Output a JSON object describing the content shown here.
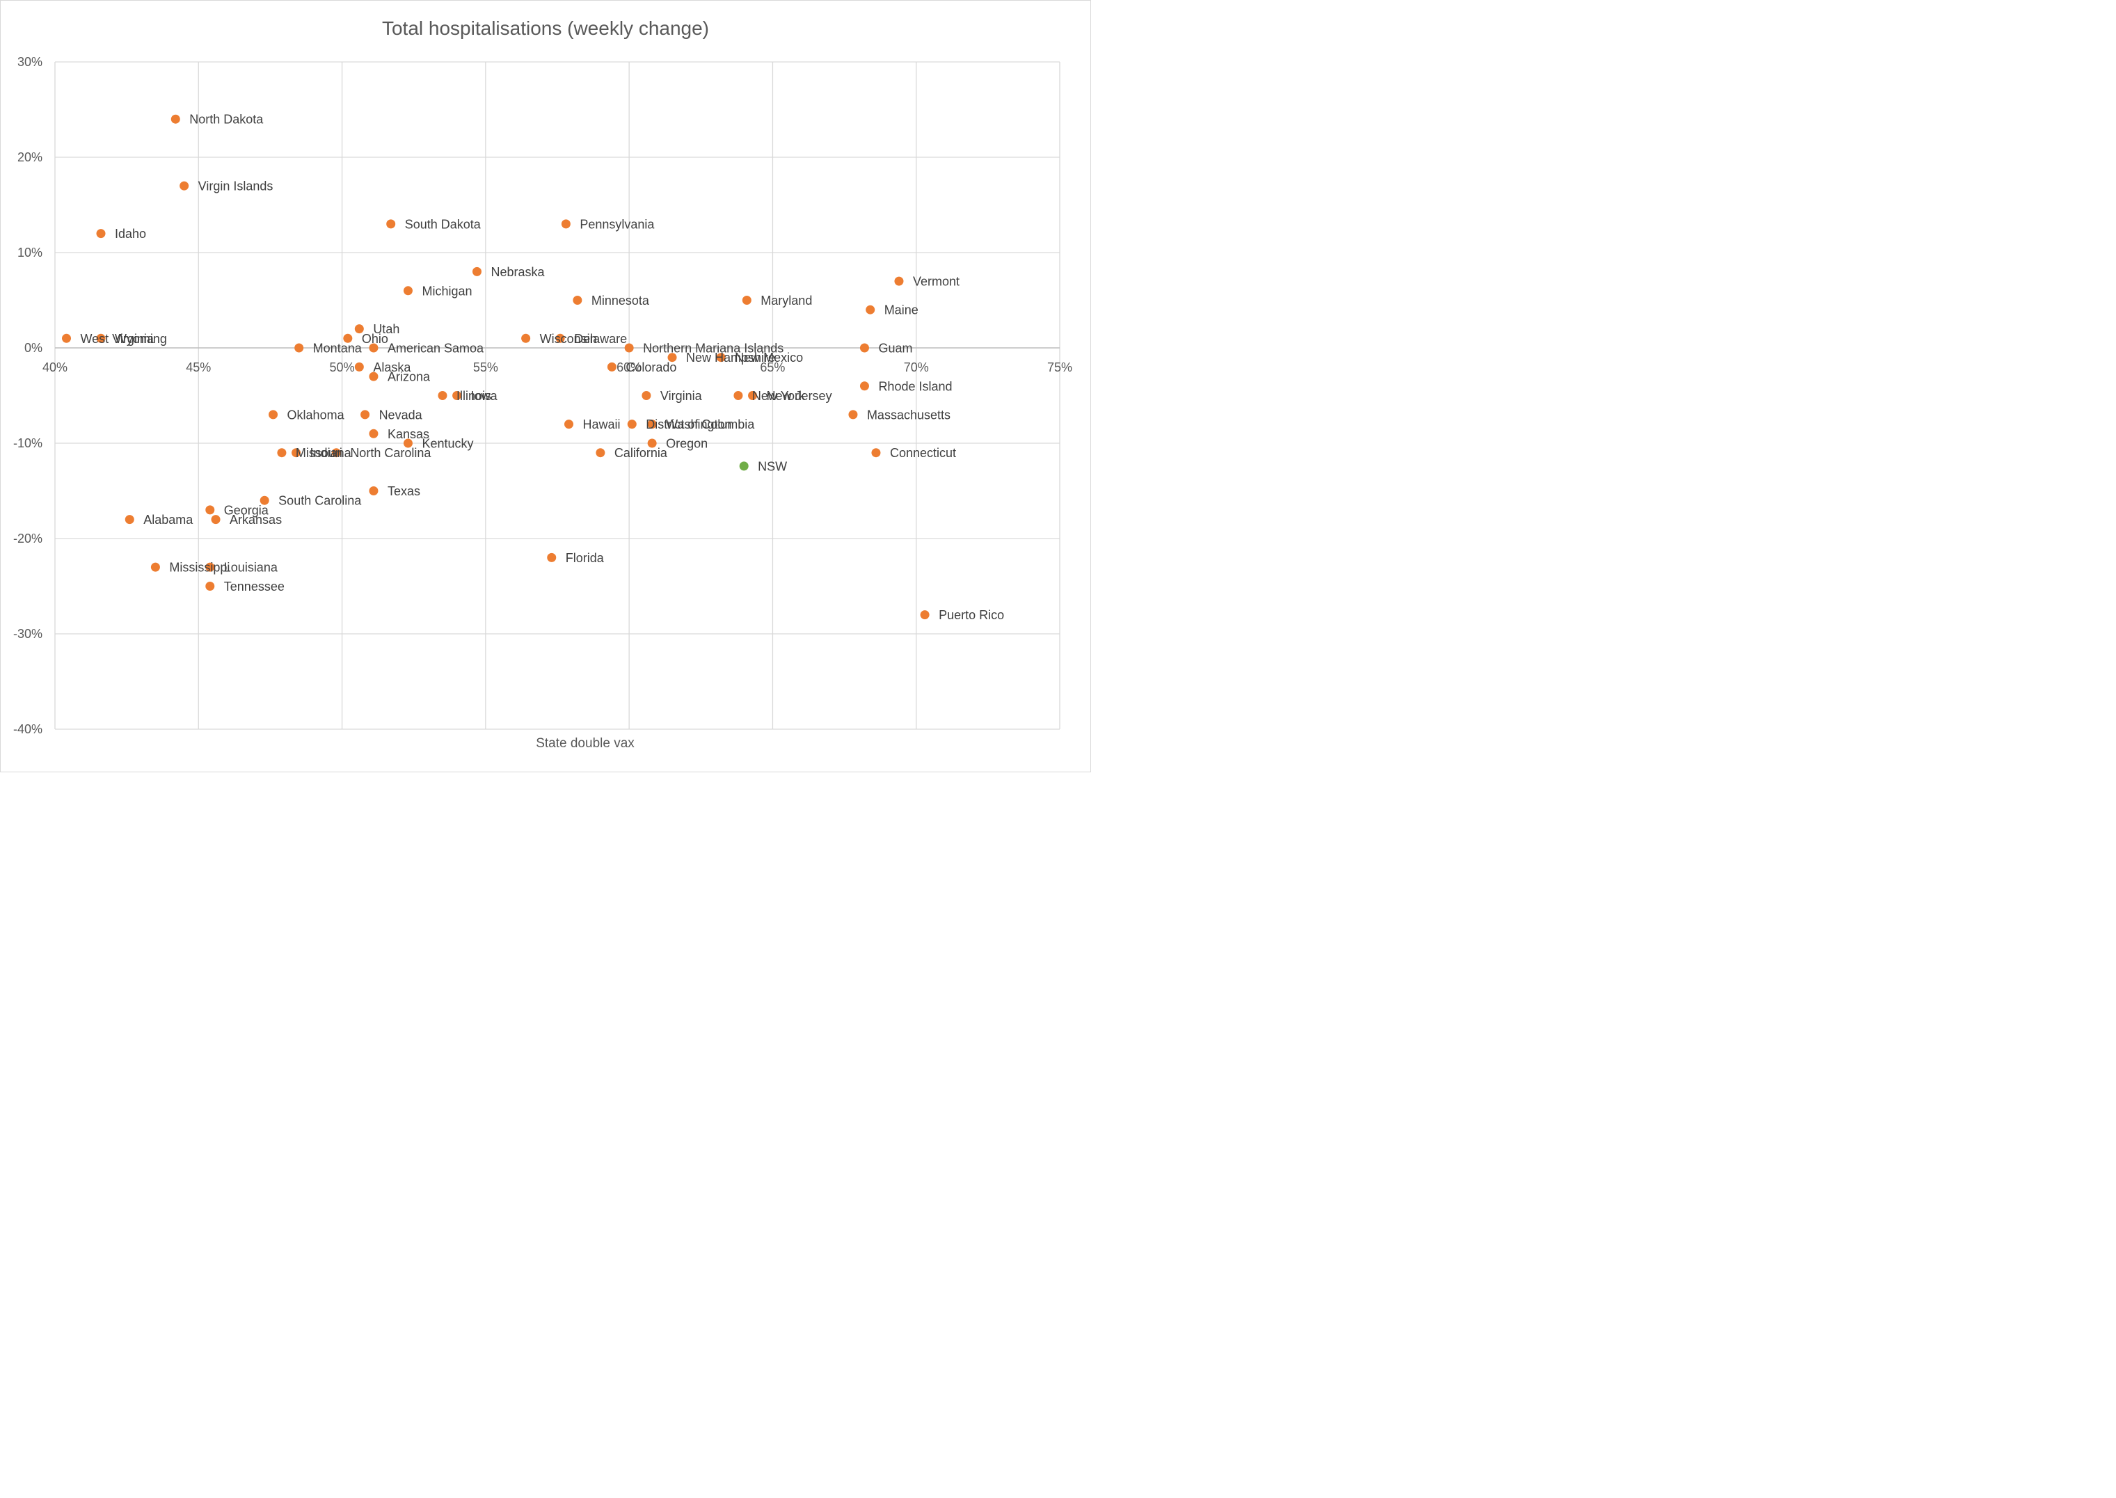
{
  "chart_data": {
    "type": "scatter",
    "title": "Total hospitalisations (weekly change)",
    "xlabel": "State double vax",
    "ylabel": "",
    "xlim": [
      0.4,
      0.75
    ],
    "ylim": [
      -0.4,
      0.3
    ],
    "x_ticks": [
      0.4,
      0.45,
      0.5,
      0.55,
      0.6,
      0.65,
      0.7,
      0.75
    ],
    "x_tick_labels": [
      "40%",
      "45%",
      "50%",
      "55%",
      "60%",
      "65%",
      "70%",
      "75%"
    ],
    "y_ticks": [
      0.3,
      0.2,
      0.1,
      0.0,
      -0.1,
      -0.2,
      -0.3,
      -0.4
    ],
    "y_tick_labels": [
      "30%",
      "20%",
      "10%",
      "0%",
      "-10%",
      "-20%",
      "-30%",
      "-40%"
    ],
    "grid": true,
    "legend": "none",
    "colors": {
      "us_state": "#ED7D31",
      "highlight": "#70AD47"
    },
    "points": [
      {
        "label": "North Dakota",
        "x": 0.442,
        "y": 0.24,
        "group": "us_state"
      },
      {
        "label": "Virgin Islands",
        "x": 0.445,
        "y": 0.17,
        "group": "us_state"
      },
      {
        "label": "Idaho",
        "x": 0.416,
        "y": 0.12,
        "group": "us_state"
      },
      {
        "label": "South Dakota",
        "x": 0.517,
        "y": 0.13,
        "group": "us_state"
      },
      {
        "label": "Pennsylvania",
        "x": 0.578,
        "y": 0.13,
        "group": "us_state"
      },
      {
        "label": "Nebraska",
        "x": 0.547,
        "y": 0.08,
        "group": "us_state"
      },
      {
        "label": "Michigan",
        "x": 0.523,
        "y": 0.06,
        "group": "us_state"
      },
      {
        "label": "Minnesota",
        "x": 0.582,
        "y": 0.05,
        "group": "us_state"
      },
      {
        "label": "Maryland",
        "x": 0.641,
        "y": 0.05,
        "group": "us_state"
      },
      {
        "label": "Vermont",
        "x": 0.694,
        "y": 0.07,
        "group": "us_state"
      },
      {
        "label": "Maine",
        "x": 0.684,
        "y": 0.04,
        "group": "us_state"
      },
      {
        "label": "West Virginia",
        "x": 0.404,
        "y": 0.01,
        "group": "us_state"
      },
      {
        "label": "Wyoming",
        "x": 0.416,
        "y": 0.01,
        "group": "us_state"
      },
      {
        "label": "Utah",
        "x": 0.506,
        "y": 0.02,
        "group": "us_state"
      },
      {
        "label": "Ohio",
        "x": 0.502,
        "y": 0.01,
        "group": "us_state"
      },
      {
        "label": "Montana",
        "x": 0.485,
        "y": 0.0,
        "group": "us_state"
      },
      {
        "label": "American Samoa",
        "x": 0.511,
        "y": 0.0,
        "group": "us_state"
      },
      {
        "label": "Wisconsin",
        "x": 0.564,
        "y": 0.01,
        "group": "us_state"
      },
      {
        "label": "Delaware",
        "x": 0.576,
        "y": 0.01,
        "group": "us_state"
      },
      {
        "label": "Northern Mariana Islands",
        "x": 0.6,
        "y": 0.0,
        "group": "us_state"
      },
      {
        "label": "Guam",
        "x": 0.682,
        "y": 0.0,
        "group": "us_state"
      },
      {
        "label": "Alaska",
        "x": 0.506,
        "y": -0.02,
        "group": "us_state"
      },
      {
        "label": "Colorado",
        "x": 0.594,
        "y": -0.02,
        "group": "us_state"
      },
      {
        "label": "New Hampshire",
        "x": 0.615,
        "y": -0.01,
        "group": "us_state"
      },
      {
        "label": "New Mexico",
        "x": 0.632,
        "y": -0.01,
        "group": "us_state"
      },
      {
        "label": "Arizona",
        "x": 0.511,
        "y": -0.03,
        "group": "us_state"
      },
      {
        "label": "Rhode Island",
        "x": 0.682,
        "y": -0.04,
        "group": "us_state"
      },
      {
        "label": "Illinois",
        "x": 0.535,
        "y": -0.05,
        "group": "us_state"
      },
      {
        "label": "Iowa",
        "x": 0.54,
        "y": -0.05,
        "group": "us_state"
      },
      {
        "label": "Virginia",
        "x": 0.606,
        "y": -0.05,
        "group": "us_state"
      },
      {
        "label": "New York",
        "x": 0.638,
        "y": -0.05,
        "group": "us_state"
      },
      {
        "label": "New Jersey",
        "x": 0.643,
        "y": -0.05,
        "group": "us_state"
      },
      {
        "label": "Oklahoma",
        "x": 0.476,
        "y": -0.07,
        "group": "us_state"
      },
      {
        "label": "Nevada",
        "x": 0.508,
        "y": -0.07,
        "group": "us_state"
      },
      {
        "label": "Massachusetts",
        "x": 0.678,
        "y": -0.07,
        "group": "us_state"
      },
      {
        "label": "Kansas",
        "x": 0.511,
        "y": -0.09,
        "group": "us_state"
      },
      {
        "label": "Hawaii",
        "x": 0.579,
        "y": -0.08,
        "group": "us_state"
      },
      {
        "label": "District of Columbia",
        "x": 0.601,
        "y": -0.08,
        "group": "us_state"
      },
      {
        "label": "Washington",
        "x": 0.608,
        "y": -0.08,
        "group": "us_state"
      },
      {
        "label": "Kentucky",
        "x": 0.523,
        "y": -0.1,
        "group": "us_state"
      },
      {
        "label": "Oregon",
        "x": 0.608,
        "y": -0.1,
        "group": "us_state"
      },
      {
        "label": "Missouri",
        "x": 0.479,
        "y": -0.11,
        "group": "us_state"
      },
      {
        "label": "Indiana",
        "x": 0.484,
        "y": -0.11,
        "group": "us_state"
      },
      {
        "label": "North Carolina",
        "x": 0.498,
        "y": -0.11,
        "group": "us_state"
      },
      {
        "label": "California",
        "x": 0.59,
        "y": -0.11,
        "group": "us_state"
      },
      {
        "label": "Connecticut",
        "x": 0.686,
        "y": -0.11,
        "group": "us_state"
      },
      {
        "label": "NSW",
        "x": 0.64,
        "y": -0.124,
        "group": "highlight"
      },
      {
        "label": "Texas",
        "x": 0.511,
        "y": -0.15,
        "group": "us_state"
      },
      {
        "label": "South Carolina",
        "x": 0.473,
        "y": -0.16,
        "group": "us_state"
      },
      {
        "label": "Georgia",
        "x": 0.454,
        "y": -0.17,
        "group": "us_state"
      },
      {
        "label": "Alabama",
        "x": 0.426,
        "y": -0.18,
        "group": "us_state"
      },
      {
        "label": "Arkansas",
        "x": 0.456,
        "y": -0.18,
        "group": "us_state"
      },
      {
        "label": "Florida",
        "x": 0.573,
        "y": -0.22,
        "group": "us_state"
      },
      {
        "label": "Mississippi",
        "x": 0.435,
        "y": -0.23,
        "group": "us_state"
      },
      {
        "label": "Louisiana",
        "x": 0.454,
        "y": -0.23,
        "group": "us_state"
      },
      {
        "label": "Tennessee",
        "x": 0.454,
        "y": -0.25,
        "group": "us_state"
      },
      {
        "label": "Puerto Rico",
        "x": 0.703,
        "y": -0.28,
        "group": "us_state"
      }
    ]
  }
}
